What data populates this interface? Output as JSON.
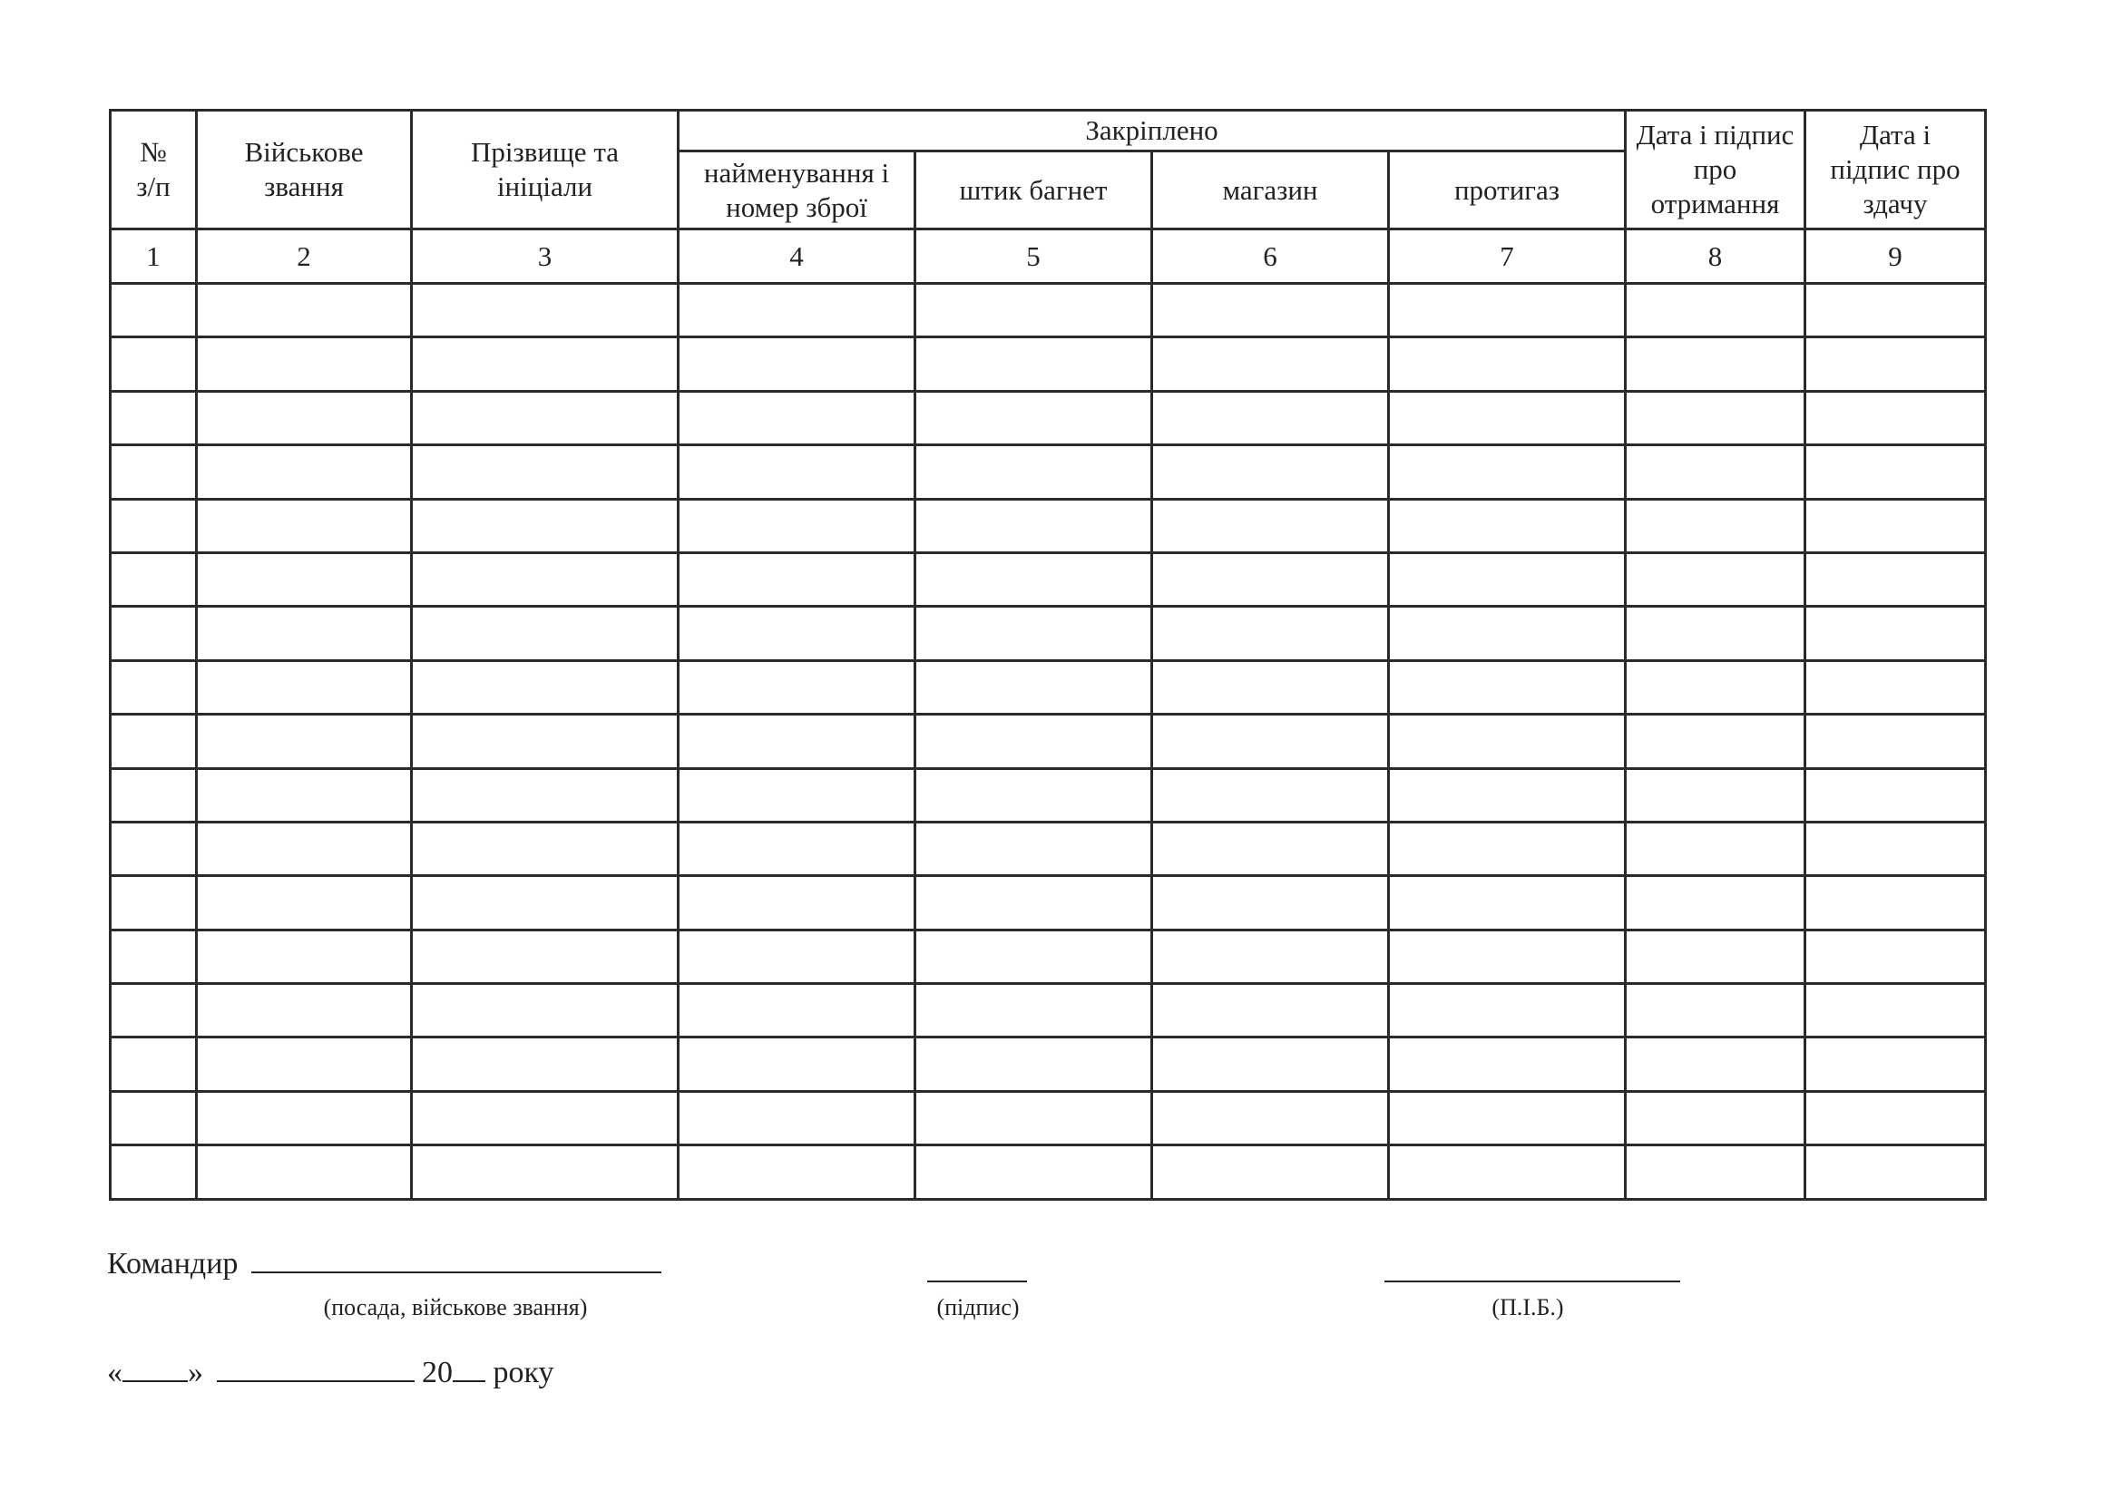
{
  "table": {
    "headers": {
      "no": "№ з/п",
      "rank": "Військове звання",
      "name": "Прізвище та ініціали",
      "assigned_group": "Закріплено",
      "weapon": "найменування і номер зброї",
      "bayonet": "штик багнет",
      "magazine": "магазин",
      "gasmask": "протигаз",
      "received": "Дата і підпис про отримання",
      "returned": "Дата і підпис про здачу"
    },
    "column_numbers": [
      "1",
      "2",
      "3",
      "4",
      "5",
      "6",
      "7",
      "8",
      "9"
    ],
    "empty_row_count": 17
  },
  "footer": {
    "commander_label": "Командир",
    "position_caption": "(посада, військове звання)",
    "signature_caption": "(підпис)",
    "name_caption": "(П.І.Б.)",
    "date_open_quote": "«",
    "date_close_quote": "»",
    "year_prefix": "20",
    "year_suffix": "року"
  }
}
